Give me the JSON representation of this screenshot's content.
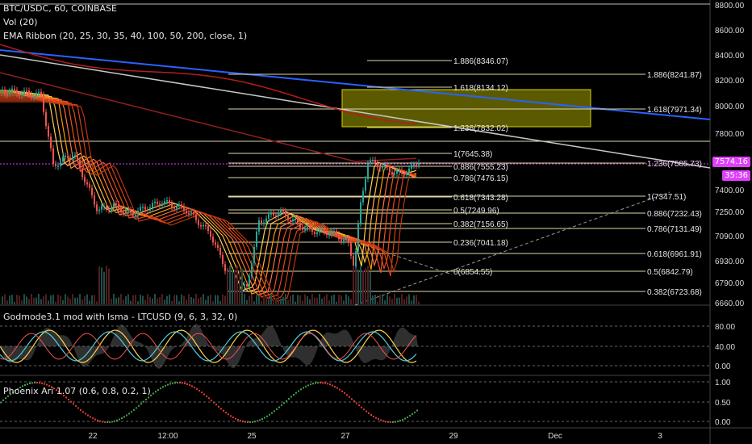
{
  "header": {
    "symbol_line": "BTC/USDC, 60, COINBASE",
    "volume_line": "Vol (20)",
    "ribbon_line": "EMA Ribbon (20, 25, 30, 35, 40, 100, 50, 200, close, 1)"
  },
  "price_tag": {
    "price": "7574.16",
    "countdown": "35:36",
    "color": "#e040fb"
  },
  "price_axis": {
    "labels": [
      "8800.00",
      "8600.00",
      "8400.00",
      "8200.00",
      "8000.00",
      "7800.00",
      "7400.00",
      "7250.00",
      "7090.00",
      "6930.00",
      "6790.00",
      "6660.00"
    ]
  },
  "fib_levels_right": [
    {
      "label": "1.886(8241.87)"
    },
    {
      "label": "1.618(7971.34)"
    },
    {
      "label": "1.236(7585.73)"
    },
    {
      "label": "1(7347.51)"
    },
    {
      "label": "0.886(7232.43)"
    },
    {
      "label": "0.786(7131.49)"
    },
    {
      "label": "0.618(6961.91)"
    },
    {
      "label": "0.5(6842.79)"
    },
    {
      "label": "0.382(6723.68)"
    }
  ],
  "fib_levels_mid": [
    {
      "label": "1.886(8346.07)"
    },
    {
      "label": "1.618(8134.12)"
    },
    {
      "label": "1.236(7832.02)"
    },
    {
      "label": "1(7645.38)"
    },
    {
      "label": "0.886(7555.23)"
    },
    {
      "label": "0.786(7476.15)"
    },
    {
      "label": "0.618(7343.28)"
    },
    {
      "label": "0.5(7249.96)"
    },
    {
      "label": "0.382(7156.65)"
    },
    {
      "label": "0.236(7041.18)"
    },
    {
      "label": "0(6854.55)"
    }
  ],
  "oscillator1": {
    "title": "Godmode3.1 mod with lsma - LTCUSD (9, 6, 3, 32, 0)",
    "axis_labels": [
      "80.00",
      "40.00",
      "0.00"
    ]
  },
  "oscillator2": {
    "title": "Phoenix Ari 1.07 (0.6, 0.8, 0.2, 1)",
    "axis_labels": [
      "1.00",
      "0.50",
      "0.00"
    ]
  },
  "time_axis": {
    "labels": [
      "22",
      "12:00",
      "25",
      "27",
      "29",
      "Dec",
      "3"
    ]
  },
  "colors": {
    "up": "#26a69a",
    "down": "#ef5350",
    "blue_trend": "#2962ff",
    "white_trend": "#c8c8c8",
    "fib_line": "#e0d9a6",
    "zone_fill": "#6b6a00",
    "zone_border": "#d8d000"
  }
}
